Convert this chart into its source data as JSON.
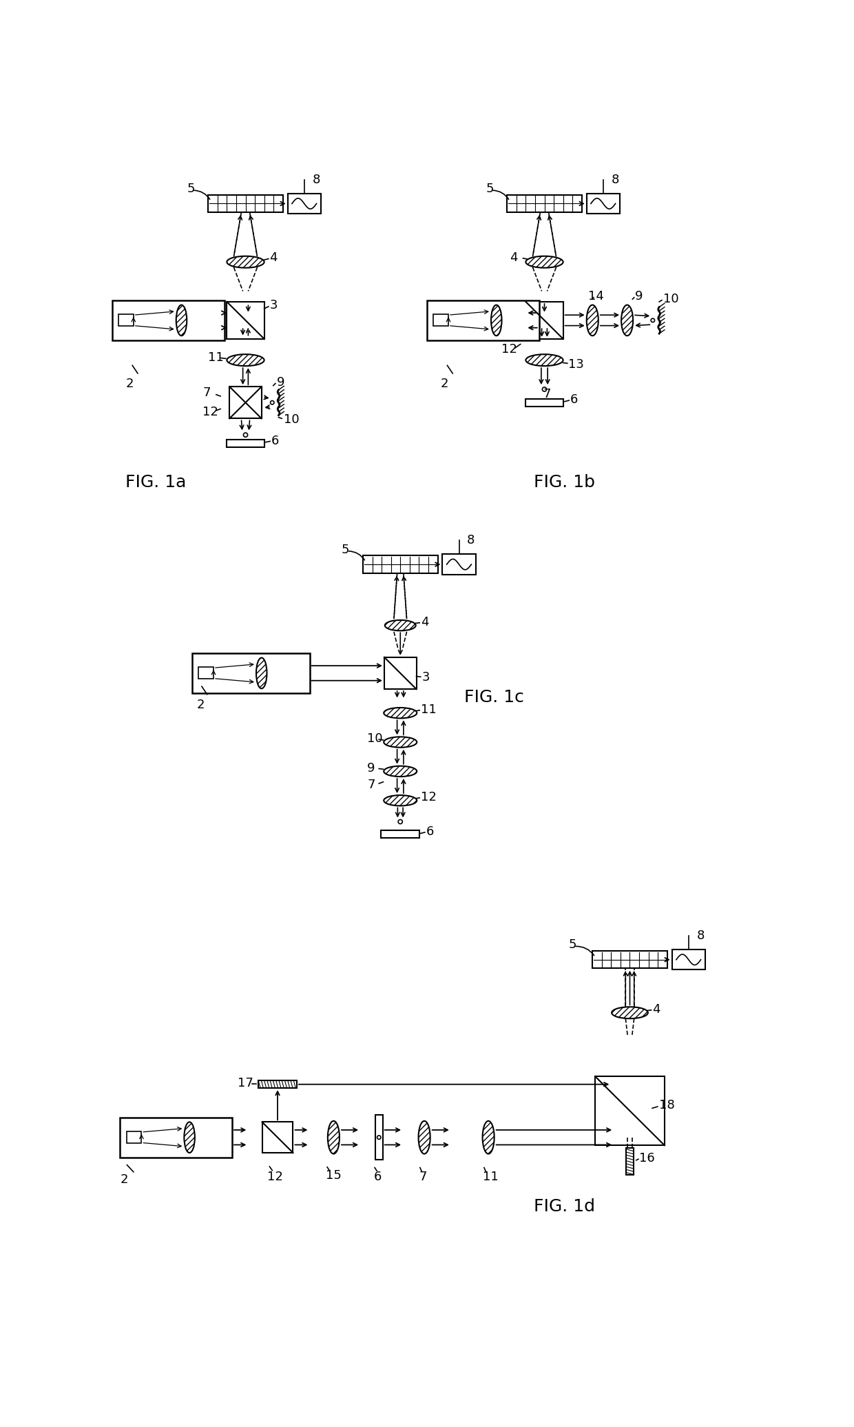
{
  "bg_color": "#ffffff",
  "line_color": "#000000",
  "fig_labels": [
    "FIG. 1a",
    "FIG. 1b",
    "FIG. 1c",
    "FIG. 1d"
  ],
  "fig_label_fontsize": 18,
  "num_fontsize": 13,
  "panels": {
    "1a": {
      "ox": 0.3,
      "oy": 14.5
    },
    "1b": {
      "ox": 6.2,
      "oy": 14.5
    },
    "1c": {
      "ox": 1.5,
      "oy": 7.5
    },
    "1d": {
      "ox": 0.2,
      "oy": 1.0
    }
  }
}
